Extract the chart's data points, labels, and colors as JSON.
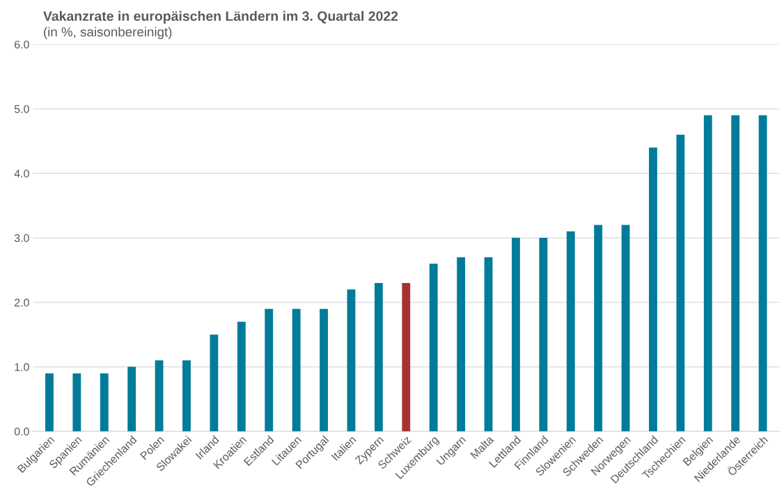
{
  "chart_data": {
    "type": "bar",
    "title": "Vakanzrate in europäischen Ländern im 3. Quartal 2022",
    "subtitle": "(in %, saisonbereinigt)",
    "categories": [
      "Bulgarien",
      "Spanien",
      "Rumänien",
      "Griechenland",
      "Polen",
      "Slowakei",
      "Irland",
      "Kroatien",
      "Estland",
      "Litauen",
      "Portugal",
      "Italien",
      "Zypern",
      "Schweiz",
      "Luxemburg",
      "Ungarn",
      "Malta",
      "Lettland",
      "Finnland",
      "Slowenien",
      "Schweden",
      "Norwegen",
      "Deutschland",
      "Tschechien",
      "Belgien",
      "Niederlande",
      "Österreich"
    ],
    "values": [
      0.9,
      0.9,
      0.9,
      1.0,
      1.1,
      1.1,
      1.5,
      1.7,
      1.9,
      1.9,
      1.9,
      2.2,
      2.3,
      2.3,
      2.6,
      2.7,
      2.7,
      3.0,
      3.0,
      3.1,
      3.2,
      3.2,
      4.4,
      4.6,
      4.9,
      4.9,
      4.9
    ],
    "colors": [
      "#007b99",
      "#007b99",
      "#007b99",
      "#007b99",
      "#007b99",
      "#007b99",
      "#007b99",
      "#007b99",
      "#007b99",
      "#007b99",
      "#007b99",
      "#007b99",
      "#007b99",
      "#a83232",
      "#007b99",
      "#007b99",
      "#007b99",
      "#007b99",
      "#007b99",
      "#007b99",
      "#007b99",
      "#007b99",
      "#007b99",
      "#007b99",
      "#007b99",
      "#007b99",
      "#007b99"
    ],
    "ylim": [
      0,
      6
    ],
    "yticks": [
      {
        "value": 0,
        "label": "0.0"
      },
      {
        "value": 1,
        "label": "1.0"
      },
      {
        "value": 2,
        "label": "2.0"
      },
      {
        "value": 3,
        "label": "3.0"
      },
      {
        "value": 4,
        "label": "4.0"
      },
      {
        "value": 5,
        "label": "5.0"
      },
      {
        "value": 6,
        "label": "6.0"
      }
    ],
    "grid": "y"
  }
}
